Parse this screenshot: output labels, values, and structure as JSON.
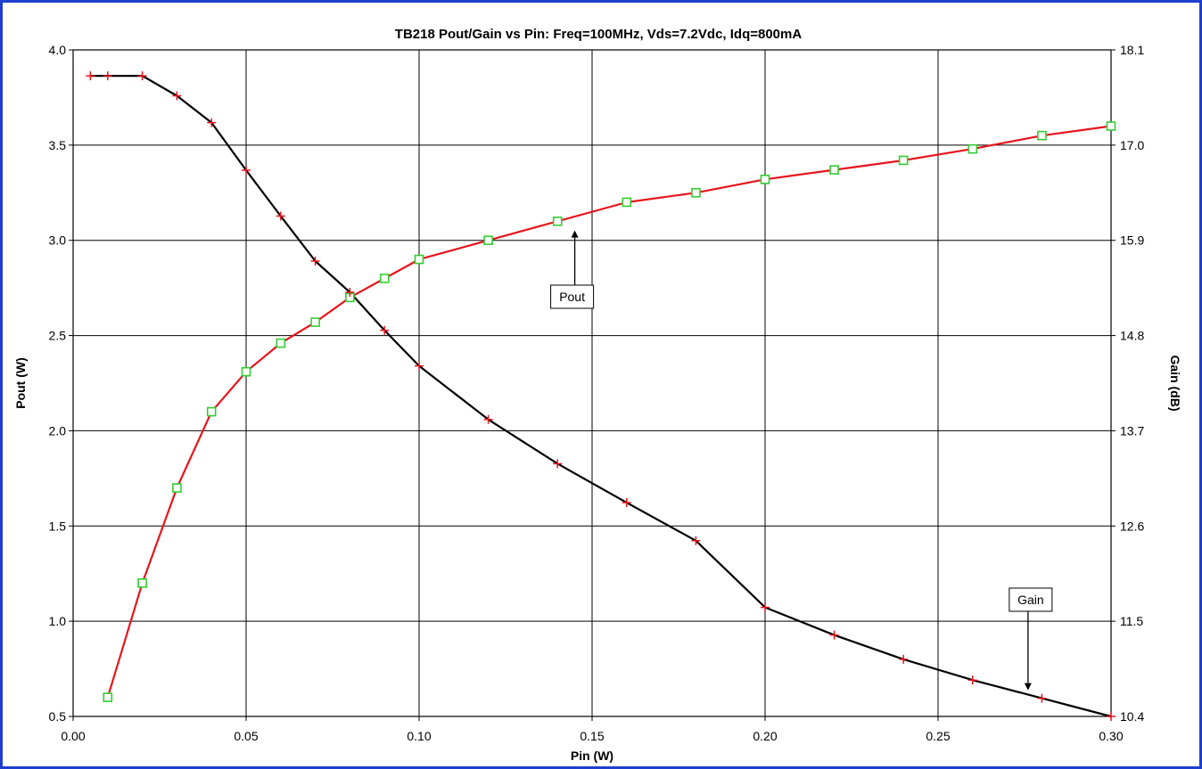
{
  "chart_data": {
    "type": "line",
    "title": "TB218 Pout/Gain vs Pin: Freq=100MHz, Vds=7.2Vdc, Idq=800mA",
    "xlabel": "Pin (W)",
    "ylabel": "Pout (W)",
    "y2label": "Gain (dB)",
    "xlim": [
      0.0,
      0.3
    ],
    "ylim": [
      0.5,
      4.0
    ],
    "y2lim": [
      10.4,
      18.1
    ],
    "x_ticks": [
      "0.00",
      "0.05",
      "0.10",
      "0.15",
      "0.20",
      "0.25",
      "0.30"
    ],
    "y_ticks": [
      "0.5",
      "1.0",
      "1.5",
      "2.0",
      "2.5",
      "3.0",
      "3.5",
      "4.0"
    ],
    "y2_ticks": [
      "10.4",
      "11.5",
      "12.6",
      "13.7",
      "14.8",
      "15.9",
      "17.0",
      "18.1"
    ],
    "grid": true,
    "series": [
      {
        "name": "Pout",
        "axis": "left",
        "line_color": "#e8141c",
        "marker": "square",
        "marker_color": "#33cc33",
        "x": [
          0.01,
          0.02,
          0.03,
          0.04,
          0.05,
          0.06,
          0.07,
          0.08,
          0.09,
          0.1,
          0.12,
          0.14,
          0.16,
          0.18,
          0.2,
          0.22,
          0.24,
          0.26,
          0.28,
          0.3
        ],
        "y": [
          0.6,
          1.2,
          1.7,
          2.1,
          2.31,
          2.46,
          2.57,
          2.7,
          2.8,
          2.9,
          3.0,
          3.1,
          3.2,
          3.25,
          3.32,
          3.37,
          3.42,
          3.48,
          3.55,
          3.6
        ]
      },
      {
        "name": "Gain",
        "axis": "right",
        "line_color": "#000000",
        "marker": "plus",
        "marker_color": "#e8141c",
        "x": [
          0.005,
          0.01,
          0.02,
          0.03,
          0.04,
          0.05,
          0.06,
          0.07,
          0.08,
          0.09,
          0.1,
          0.12,
          0.14,
          0.16,
          0.18,
          0.2,
          0.22,
          0.24,
          0.26,
          0.28,
          0.3
        ],
        "y": [
          17.8,
          17.8,
          17.8,
          17.57,
          17.26,
          16.71,
          16.18,
          15.66,
          15.3,
          14.86,
          14.45,
          13.83,
          13.32,
          12.87,
          12.43,
          11.66,
          11.34,
          11.06,
          10.82,
          10.61,
          10.4
        ]
      }
    ],
    "annotations": [
      {
        "text": "Pout",
        "series": "Pout",
        "target_x": 0.145,
        "target_y": 3.08
      },
      {
        "text": "Gain",
        "series": "Gain",
        "target_x": 0.276,
        "target_y": 10.64
      }
    ]
  }
}
